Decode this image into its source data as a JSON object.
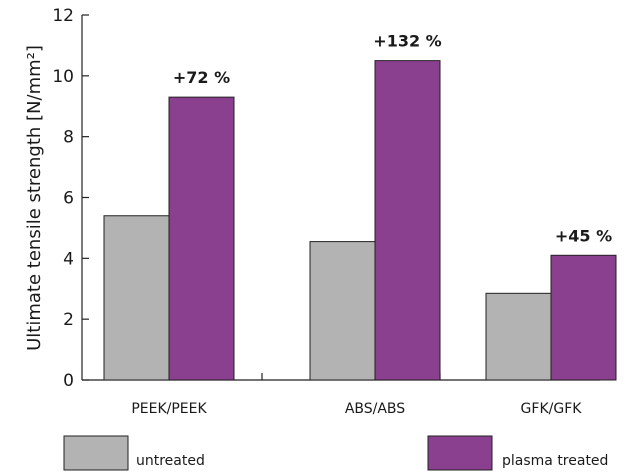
{
  "chart_data": {
    "type": "bar",
    "ylabel": "Ultimate tensile strength  [N/mm²]",
    "ylim": [
      0,
      12
    ],
    "yticks": [
      "0",
      "2",
      "4",
      "6",
      "8",
      "10",
      "12"
    ],
    "categories": [
      "PEEK/PEEK",
      "ABS/ABS",
      "GFK/GFK"
    ],
    "series": [
      {
        "name": "untreated",
        "color": "#b3b3b3",
        "values": [
          5.4,
          4.55,
          2.85
        ]
      },
      {
        "name": "plasma treated",
        "color": "#8b3f8f",
        "values": [
          9.3,
          10.5,
          4.1
        ]
      }
    ],
    "annotations": [
      "+72 %",
      "+132 %",
      "+45 %"
    ],
    "legend_position": "bottom"
  }
}
